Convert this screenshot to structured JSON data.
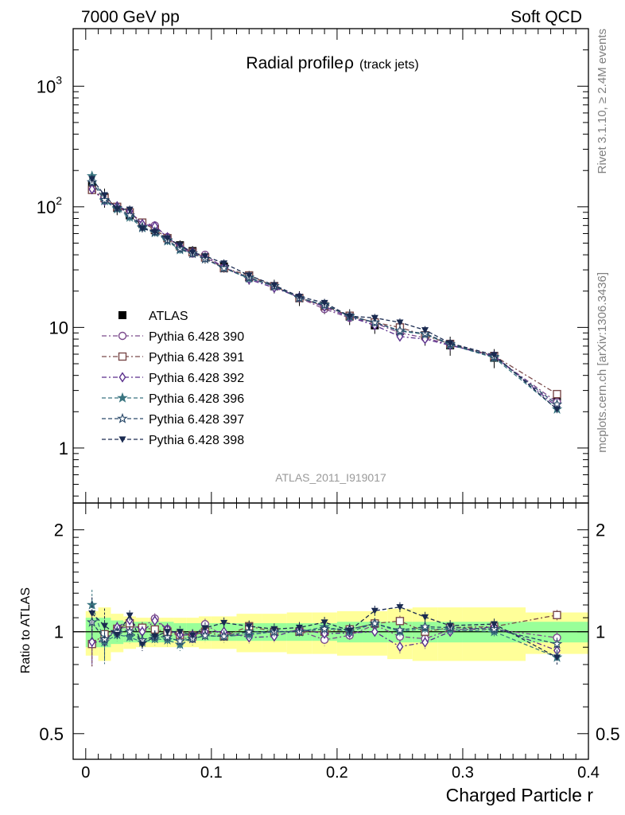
{
  "header": {
    "left": "7000 GeV pp",
    "right": "Soft QCD"
  },
  "side_texts": {
    "rivet": "Rivet 3.1.10, ≥ 2.4M events",
    "mcplots": "mcplots.cern.ch [arXiv:1306.3436]"
  },
  "chart_data": [
    {
      "type": "scatter",
      "panel": "main",
      "title_main": "Radial profile",
      "title_symbol": "ρ",
      "title_sub": "(track jets)",
      "analysis_label": "ATLAS_2011_I919017",
      "y_scale": "log",
      "ylim": [
        0.35,
        3000
      ],
      "xlim": [
        -0.01,
        0.4
      ],
      "y_ticks": [
        {
          "value": 1000,
          "base": "10",
          "exp": "3"
        },
        {
          "value": 100,
          "base": "10",
          "exp": "2"
        },
        {
          "value": 10,
          "base": "10",
          "exp": ""
        },
        {
          "value": 1,
          "base": "1",
          "exp": ""
        }
      ],
      "legend_position": "middle-left",
      "x": [
        0.005,
        0.015,
        0.025,
        0.035,
        0.045,
        0.055,
        0.065,
        0.075,
        0.085,
        0.095,
        0.11,
        0.13,
        0.15,
        0.17,
        0.19,
        0.21,
        0.23,
        0.25,
        0.27,
        0.29,
        0.325,
        0.375
      ],
      "data": {
        "name": "ATLAS",
        "color": "#000000",
        "values": [
          150,
          120,
          98,
          85,
          72,
          64,
          55,
          48,
          43,
          38,
          32,
          26,
          22,
          17.5,
          15,
          12.3,
          10.4,
          9.3,
          8.6,
          7.1,
          5.6,
          2.5
        ],
        "band_inner": [
          0.1,
          0.1,
          0.08,
          0.07,
          0.07,
          0.07,
          0.07,
          0.06,
          0.06,
          0.06,
          0.06,
          0.06,
          0.06,
          0.06,
          0.06,
          0.07,
          0.07,
          0.07,
          0.07,
          0.07,
          0.07,
          0.07
        ],
        "band_outer": [
          0.15,
          0.18,
          0.13,
          0.11,
          0.1,
          0.1,
          0.1,
          0.1,
          0.1,
          0.11,
          0.11,
          0.13,
          0.13,
          0.14,
          0.14,
          0.15,
          0.15,
          0.17,
          0.18,
          0.18,
          0.18,
          0.14
        ]
      },
      "series": [
        {
          "name": "Pythia 6.428 390",
          "color": "#7b4a8c",
          "marker": "circle",
          "dash": "6,3,2,3",
          "values": [
            138,
            114,
            100,
            88,
            74,
            70,
            56,
            46,
            41,
            40,
            31,
            25.5,
            22,
            17.6,
            14.2,
            12,
            10.9,
            9.0,
            8.2,
            7.2,
            5.7,
            2.4
          ]
        },
        {
          "name": "Pythia 6.428 391",
          "color": "#7a4a4a",
          "marker": "square",
          "dash": "6,3,2,3",
          "values": [
            138,
            118,
            100,
            90,
            74,
            65,
            55,
            47,
            42,
            38,
            31,
            27,
            22,
            17.5,
            15,
            12.5,
            11,
            10,
            8.6,
            7.3,
            5.8,
            2.8
          ]
        },
        {
          "name": "Pythia 6.428 392",
          "color": "#5a2f8c",
          "marker": "diamond",
          "dash": "6,3,2,3",
          "values": [
            140,
            112,
            101,
            92,
            72,
            69,
            56,
            47,
            42,
            38,
            32,
            25,
            21.3,
            17.8,
            14.8,
            12.2,
            10.4,
            8.4,
            8.0,
            7.1,
            5.8,
            2.2
          ]
        },
        {
          "name": "Pythia 6.428 396",
          "color": "#3a7580",
          "marker": "star",
          "dash": "5,3",
          "values": [
            180,
            112,
            96,
            82,
            67,
            61,
            52,
            44,
            41,
            37,
            31,
            25.5,
            22,
            17.5,
            15.5,
            12.3,
            11,
            9.3,
            8.8,
            7.2,
            5.6,
            2.1
          ]
        },
        {
          "name": "Pythia 6.428 397",
          "color": "#2a4a6a",
          "marker": "star-open",
          "dash": "5,3",
          "values": [
            160,
            114,
            98,
            85,
            68,
            62,
            53,
            45,
            41,
            37,
            31,
            26,
            22,
            17.5,
            15.3,
            12.5,
            11,
            9.4,
            8.9,
            7.3,
            5.7,
            2.3
          ]
        },
        {
          "name": "Pythia 6.428 398",
          "color": "#1a2a50",
          "marker": "triangle-down",
          "dash": "5,3",
          "values": [
            170,
            125,
            96,
            95,
            66,
            62,
            55,
            48,
            42,
            39,
            34,
            27,
            22.4,
            18,
            16,
            12.4,
            12,
            11,
            9.5,
            7.4,
            5.9,
            2.1
          ]
        }
      ]
    },
    {
      "type": "scatter",
      "panel": "ratio",
      "ylabel": "Ratio to ATLAS",
      "xlabel": "Charged Particle r",
      "y_scale": "log",
      "ylim": [
        0.42,
        2.4
      ],
      "xlim": [
        -0.01,
        0.4
      ],
      "y_ticks": [
        {
          "value": 2,
          "label": "2"
        },
        {
          "value": 1,
          "label": "1"
        },
        {
          "value": 0.5,
          "label": "0.5"
        }
      ],
      "x_ticks": [
        {
          "value": 0,
          "label": "0"
        },
        {
          "value": 0.1,
          "label": "0.1"
        },
        {
          "value": 0.2,
          "label": "0.2"
        },
        {
          "value": 0.3,
          "label": "0.3"
        },
        {
          "value": 0.4,
          "label": "0.4"
        }
      ]
    }
  ]
}
